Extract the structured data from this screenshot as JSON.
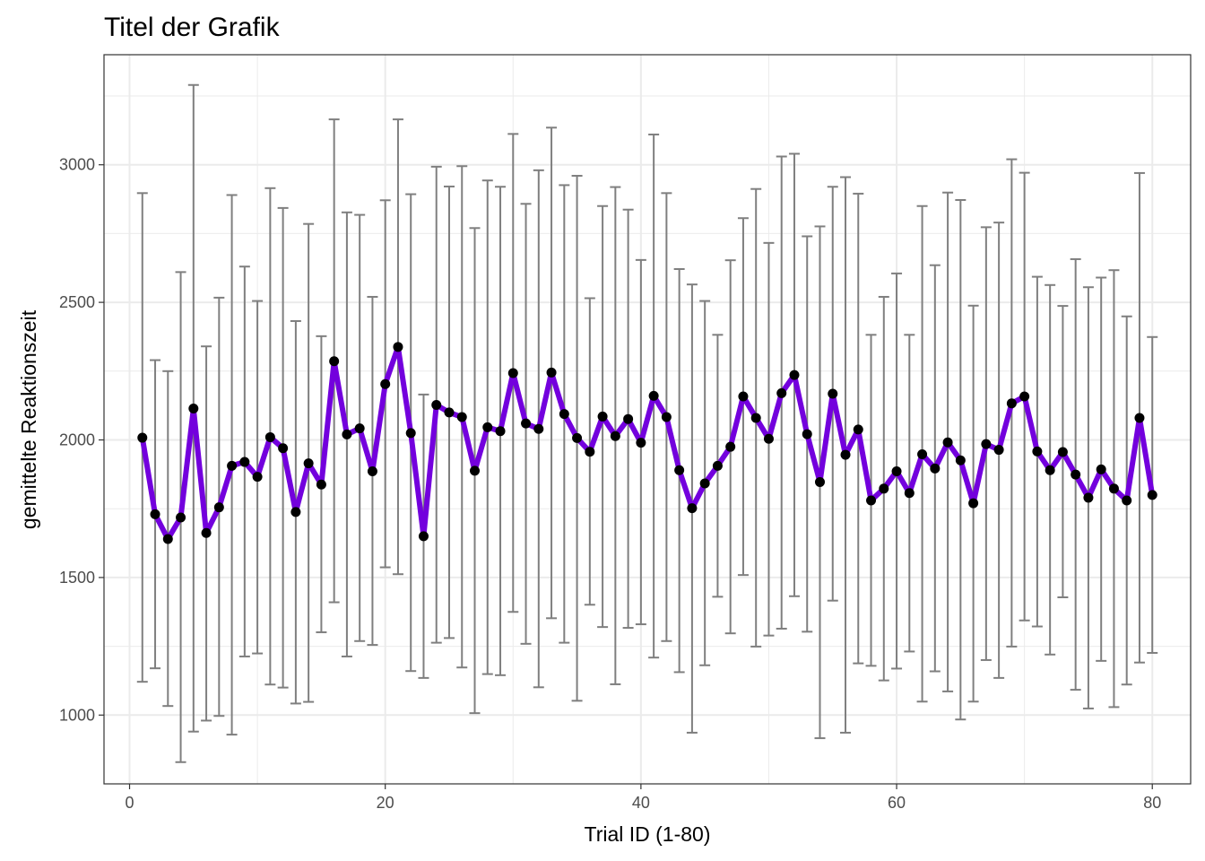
{
  "chart_data": {
    "type": "line",
    "title": "Titel der Grafik",
    "xlabel": "Trial ID (1-80)",
    "ylabel": "gemittelte Reaktionszeit",
    "xlim": [
      -2,
      83
    ],
    "ylim": [
      750,
      3400
    ],
    "x_ticks": [
      0,
      20,
      40,
      60,
      80
    ],
    "y_ticks": [
      1000,
      1500,
      2000,
      2500,
      3000
    ],
    "x_tick_labels": [
      "0",
      "20",
      "40",
      "60",
      "80"
    ],
    "y_tick_labels": [
      "1000",
      "1500",
      "2000",
      "2500",
      "3000"
    ],
    "grid": true,
    "legend": "none",
    "colors": {
      "line": "#7300dd",
      "point": "#000000",
      "errorbar": "#7f7f7f",
      "grid": "#ebebeb",
      "panel_border": "#333333"
    },
    "series": [
      {
        "x": [
          1,
          2,
          3,
          4,
          5,
          6,
          7,
          8,
          9,
          10,
          11,
          12,
          13,
          14,
          15,
          16,
          17,
          18,
          19,
          20,
          21,
          22,
          23,
          24,
          25,
          26,
          27,
          28,
          29,
          30,
          31,
          32,
          33,
          34,
          35,
          36,
          37,
          38,
          39,
          40,
          41,
          42,
          43,
          44,
          45,
          46,
          47,
          48,
          49,
          50,
          51,
          52,
          53,
          54,
          55,
          56,
          57,
          58,
          59,
          60,
          61,
          62,
          63,
          64,
          65,
          66,
          67,
          68,
          69,
          70,
          71,
          72,
          73,
          74,
          75,
          76,
          77,
          78,
          79,
          80
        ],
        "y": [
          2008,
          1730,
          1640,
          1718,
          2114,
          1662,
          1755,
          1906,
          1920,
          1866,
          2010,
          1970,
          1738,
          1915,
          1838,
          2286,
          2020,
          2042,
          1886,
          2203,
          2338,
          2025,
          1650,
          2127,
          2100,
          2083,
          1888,
          2046,
          2032,
          2243,
          2060,
          2040,
          2245,
          2094,
          2007,
          1957,
          2085,
          2014,
          2076,
          1990,
          2160,
          2083,
          1890,
          1752,
          1842,
          1906,
          1975,
          2158,
          2080,
          2004,
          2170,
          2236,
          2021,
          1847,
          2168,
          1946,
          2038,
          1780,
          1823,
          1886,
          1807,
          1948,
          1896,
          1991,
          1926,
          1770,
          1985,
          1964,
          2133,
          2158,
          1958,
          1890,
          1956,
          1874,
          1790,
          1893,
          1823,
          1780,
          2080,
          1800
        ],
        "y_upper": [
          2897,
          2290,
          2250,
          2610,
          3290,
          2340,
          2517,
          2890,
          2630,
          2505,
          2915,
          2843,
          2432,
          2785,
          2377,
          3165,
          2827,
          2818,
          2520,
          2871,
          3165,
          2893,
          2165,
          2993,
          2921,
          2995,
          2770,
          2943,
          2920,
          3112,
          2858,
          2980,
          3135,
          2926,
          2960,
          2515,
          2850,
          2919,
          2837,
          2654,
          3110,
          2897,
          2621,
          2565,
          2505,
          2382,
          2653,
          2806,
          2912,
          2716,
          3030,
          3040,
          2740,
          2776,
          2920,
          2955,
          2895,
          2382,
          2520,
          2605,
          2382,
          2850,
          2635,
          2899,
          2872,
          2488,
          2773,
          2790,
          3020,
          2971,
          2593,
          2563,
          2487,
          2657,
          2555,
          2590,
          2617,
          2449,
          2970,
          2374
        ],
        "y_lower": [
          1121,
          1170,
          1033,
          829,
          940,
          980,
          997,
          929,
          1213,
          1224,
          1111,
          1100,
          1042,
          1048,
          1301,
          1410,
          1213,
          1269,
          1255,
          1537,
          1512,
          1160,
          1135,
          1263,
          1280,
          1173,
          1007,
          1149,
          1145,
          1375,
          1259,
          1101,
          1352,
          1263,
          1052,
          1401,
          1320,
          1112,
          1317,
          1330,
          1209,
          1269,
          1156,
          936,
          1181,
          1430,
          1297,
          1509,
          1249,
          1289,
          1314,
          1432,
          1303,
          916,
          1416,
          936,
          1188,
          1179,
          1126,
          1169,
          1231,
          1049,
          1159,
          1086,
          984,
          1049,
          1200,
          1135,
          1249,
          1344,
          1322,
          1220,
          1428,
          1092,
          1024,
          1197,
          1029,
          1111,
          1191,
          1226
        ]
      }
    ]
  }
}
